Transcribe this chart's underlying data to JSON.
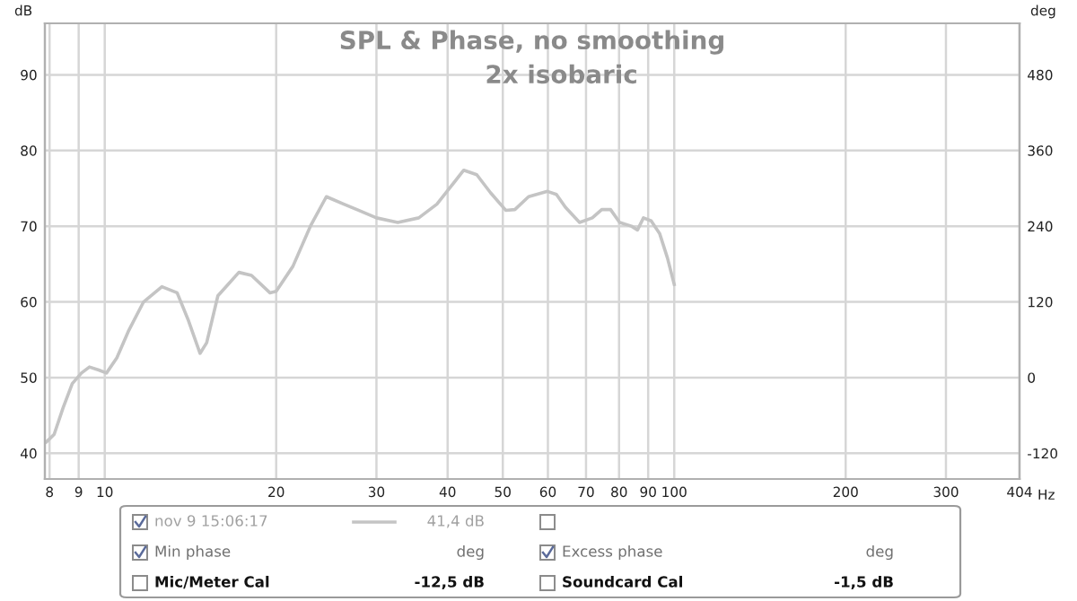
{
  "chart_data": {
    "type": "line",
    "title": "SPL & Phase, no smoothing",
    "subtitle": "2x isobaric",
    "xlabel": "Hz",
    "ylabel": "dB",
    "y2label": "deg",
    "log": "x",
    "grid": true,
    "legend": "bottom",
    "marker": "none",
    "line_style": "solid",
    "xlim": [
      7.85,
      404
    ],
    "xticks": [
      8,
      9,
      10,
      20,
      30,
      40,
      50,
      60,
      70,
      80,
      90,
      100,
      200,
      300,
      404
    ],
    "ylim": [
      36.6,
      96.8
    ],
    "yticks": [
      40,
      50,
      60,
      70,
      80,
      90
    ],
    "y2lim": [
      -160.8,
      561.6
    ],
    "y2ticks": [
      -120,
      0,
      120,
      240,
      360,
      480
    ],
    "series": [
      {
        "name": "nov 9 15:06:17",
        "color": "#c4c4c4",
        "x": [
          7.9,
          8.15,
          8.45,
          8.77,
          9.1,
          9.4,
          9.76,
          10.07,
          10.5,
          11.0,
          11.7,
          12.6,
          13.4,
          14.0,
          14.7,
          15.1,
          15.8,
          17.2,
          18.1,
          19.5,
          20.0,
          21.4,
          23.0,
          24.5,
          26.3,
          27.9,
          30.0,
          32.7,
          35.6,
          38.3,
          40.1,
          42.7,
          45.0,
          47.6,
          50.6,
          52.5,
          55.5,
          59.9,
          62.1,
          64.4,
          68.2,
          71.8,
          74.6,
          77.3,
          80.2,
          84.1,
          86.2,
          88.3,
          91.1,
          94.3,
          97.3,
          100
        ],
        "values": [
          41.5,
          42.5,
          46.0,
          49.2,
          50.6,
          51.4,
          51.0,
          50.6,
          52.6,
          56.1,
          60.0,
          62.0,
          61.2,
          57.7,
          53.2,
          54.6,
          60.8,
          63.9,
          63.5,
          61.2,
          61.4,
          64.7,
          70.1,
          73.9,
          72.9,
          72.1,
          71.1,
          70.5,
          71.1,
          72.9,
          74.8,
          77.4,
          76.8,
          74.4,
          72.1,
          72.2,
          73.9,
          74.6,
          74.2,
          72.5,
          70.5,
          71.1,
          72.2,
          72.2,
          70.5,
          70.0,
          69.5,
          71.1,
          70.7,
          69.0,
          65.8,
          62.3
        ]
      }
    ],
    "annotations": [
      "41,4 dB",
      "Min phase",
      "deg",
      "Excess phase",
      "deg",
      "Mic/Meter Cal",
      "-12,5 dB",
      "Soundcard Cal",
      "-1,5 dB"
    ]
  }
}
